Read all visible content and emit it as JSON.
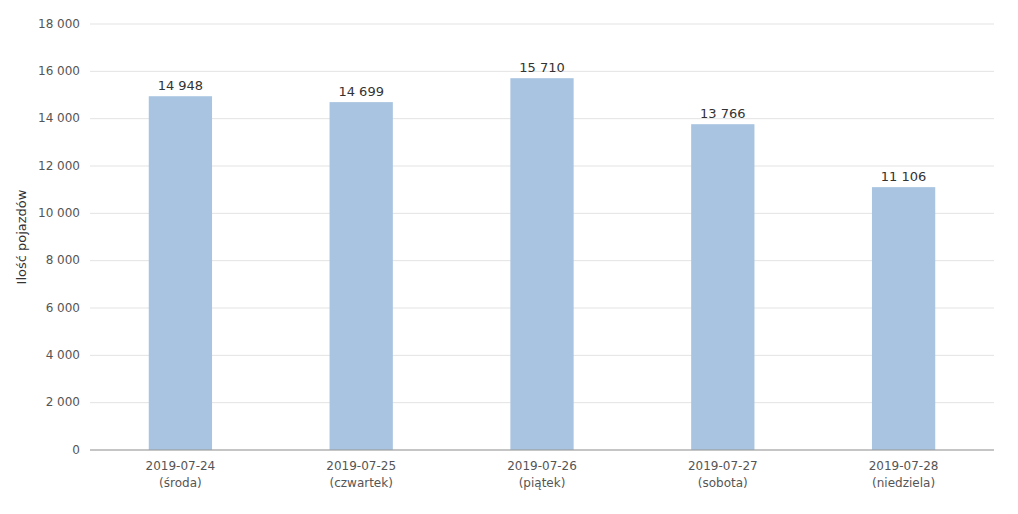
{
  "chart_data": {
    "type": "bar",
    "ylabel": "Ilość pojazdów",
    "categories": [
      [
        "2019-07-24",
        "(środa)"
      ],
      [
        "2019-07-25",
        "(czwartek)"
      ],
      [
        "2019-07-26",
        "(piątek)"
      ],
      [
        "2019-07-27",
        "(sobota)"
      ],
      [
        "2019-07-28",
        "(niedziela)"
      ]
    ],
    "values": [
      14948,
      14699,
      15710,
      13766,
      11106
    ],
    "value_labels": [
      "14 948",
      "14 699",
      "15 710",
      "13 766",
      "11 106"
    ],
    "data_labels": true,
    "color": "#a8c4e0",
    "ylim": [
      0,
      18000
    ],
    "yticks": [
      0,
      {
        "value": 2000,
        "label": "2 000"
      },
      {
        "value": 4000,
        "label": "4 000"
      },
      {
        "value": 6000,
        "label": "6 000"
      },
      {
        "value": 8000,
        "label": "8 000"
      },
      {
        "value": 10000,
        "label": "10 000"
      },
      {
        "value": 12000,
        "label": "12 000"
      },
      {
        "value": 14000,
        "label": "14 000"
      },
      {
        "value": 16000,
        "label": "16 000"
      },
      {
        "value": 18000,
        "label": "18 000"
      }
    ],
    "grid": true
  }
}
